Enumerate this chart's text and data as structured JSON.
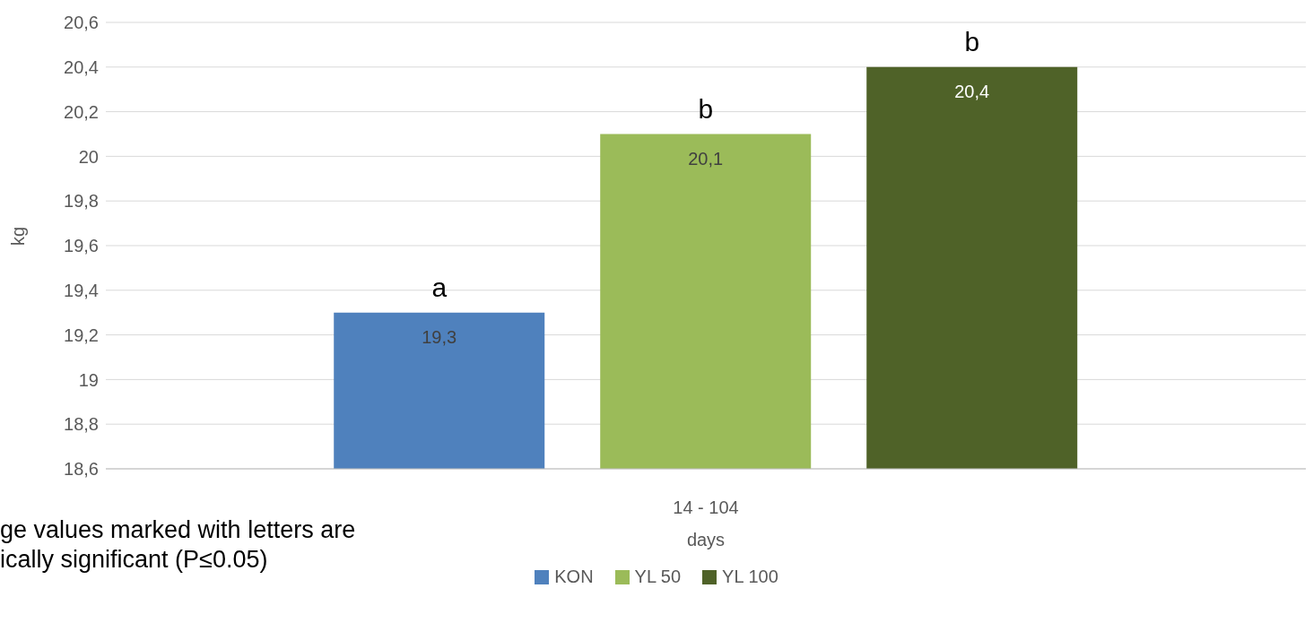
{
  "chart_data": {
    "type": "bar",
    "categories": [
      "14 - 104"
    ],
    "xlabel": "days",
    "ylabel": "kg",
    "series": [
      {
        "name": "KON",
        "color": "#4f81bd",
        "values": [
          19.3
        ],
        "value_labels": [
          "19,3"
        ]
      },
      {
        "name": "YL 50",
        "color": "#9bbb59",
        "values": [
          20.1
        ],
        "value_labels": [
          "20,1"
        ]
      },
      {
        "name": "YL 100",
        "color": "#4f6228",
        "values": [
          20.4
        ],
        "value_labels": [
          "20,4"
        ]
      }
    ],
    "ylim": [
      18.6,
      20.6
    ],
    "yticks": [
      {
        "value": 18.6,
        "label": "18,6"
      },
      {
        "value": 18.8,
        "label": "18,8"
      },
      {
        "value": 19,
        "label": "19"
      },
      {
        "value": 19.2,
        "label": "19,2"
      },
      {
        "value": 19.4,
        "label": "19,4"
      },
      {
        "value": 19.6,
        "label": "19,6"
      },
      {
        "value": 19.8,
        "label": "19,8"
      },
      {
        "value": 20,
        "label": "20"
      },
      {
        "value": 20.2,
        "label": "20,2"
      },
      {
        "value": 20.4,
        "label": "20,4"
      },
      {
        "value": 20.6,
        "label": "20,6"
      }
    ],
    "grid": "y",
    "legend": "bottom",
    "annotations": [
      "a",
      "b",
      "b",
      "ge values marked with letters are",
      "ically significant (P≤0.05)"
    ]
  }
}
